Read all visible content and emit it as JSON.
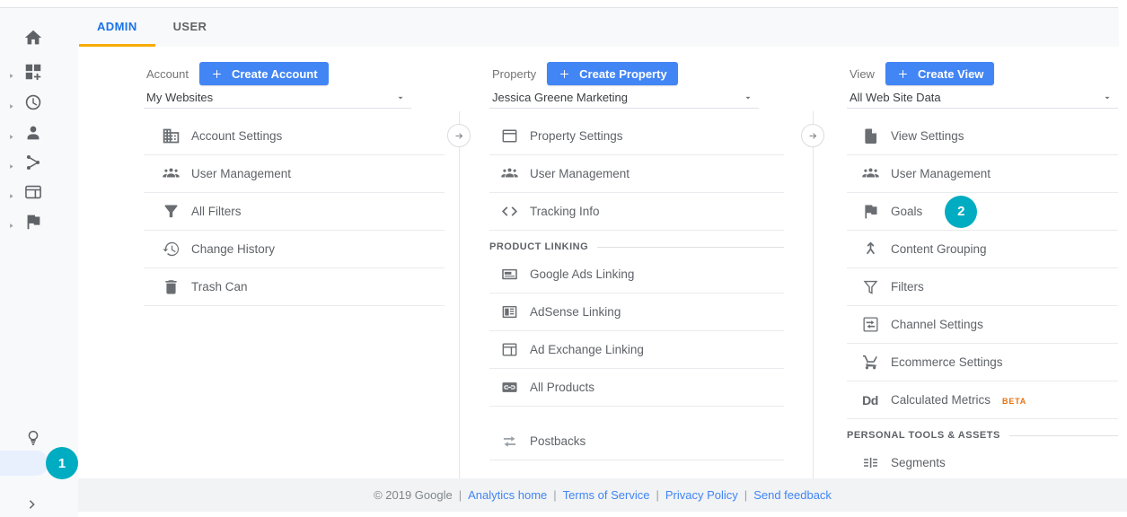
{
  "tabs": [
    {
      "label": "ADMIN",
      "active": true
    },
    {
      "label": "USER",
      "active": false
    }
  ],
  "sidebar": {
    "top_icons": [
      {
        "icon": "home-icon",
        "expandable": false
      },
      {
        "icon": "customization-icon",
        "expandable": true
      },
      {
        "icon": "clock-icon",
        "expandable": true
      },
      {
        "icon": "user-icon",
        "expandable": true
      },
      {
        "icon": "acquisition-icon",
        "expandable": true
      },
      {
        "icon": "behavior-card-icon",
        "expandable": true
      },
      {
        "icon": "flag-icon",
        "expandable": true
      }
    ],
    "bottom_icons": [
      {
        "icon": "lightbulb-icon"
      },
      {
        "icon": "gear-icon",
        "highlighted": true,
        "badge": "1"
      },
      {
        "icon": "collapse-chevron-icon"
      }
    ]
  },
  "columns": [
    {
      "entity_label": "Account",
      "create_label": "Create Account",
      "selected_value": "My Websites",
      "sections": [
        {
          "items": [
            {
              "icon": "building-icon",
              "label": "Account Settings"
            },
            {
              "icon": "user-group-icon",
              "label": "User Management"
            },
            {
              "icon": "filter-filled-icon",
              "label": "All Filters"
            },
            {
              "icon": "history-icon",
              "label": "Change History"
            },
            {
              "icon": "trash-icon",
              "label": "Trash Can"
            }
          ]
        }
      ]
    },
    {
      "entity_label": "Property",
      "create_label": "Create Property",
      "selected_value": "Jessica Greene Marketing",
      "sections": [
        {
          "items": [
            {
              "icon": "property-window-icon",
              "label": "Property Settings"
            },
            {
              "icon": "user-group-icon",
              "label": "User Management"
            },
            {
              "icon": "code-icon",
              "label": "Tracking Info"
            }
          ]
        },
        {
          "header": "PRODUCT LINKING",
          "items": [
            {
              "icon": "ads-card-icon",
              "label": "Google Ads Linking"
            },
            {
              "icon": "adsense-icon",
              "label": "AdSense Linking"
            },
            {
              "icon": "ad-exchange-icon",
              "label": "Ad Exchange Linking"
            },
            {
              "icon": "link-box-icon",
              "label": "All Products"
            }
          ]
        },
        {
          "gap": true,
          "items": [
            {
              "icon": "postbacks-icon",
              "label": "Postbacks",
              "muted": true
            }
          ]
        }
      ]
    },
    {
      "entity_label": "View",
      "create_label": "Create View",
      "selected_value": "All Web Site Data",
      "sections": [
        {
          "items": [
            {
              "icon": "file-icon",
              "label": "View Settings"
            },
            {
              "icon": "user-group-icon",
              "label": "User Management"
            },
            {
              "icon": "flag-icon",
              "label": "Goals",
              "badge": "2"
            },
            {
              "icon": "content-grouping-icon",
              "label": "Content Grouping"
            },
            {
              "icon": "filter-outline-icon",
              "label": "Filters"
            },
            {
              "icon": "channel-settings-icon",
              "label": "Channel Settings"
            },
            {
              "icon": "cart-icon",
              "label": "Ecommerce Settings"
            },
            {
              "icon": "dd-icon",
              "label": "Calculated Metrics",
              "suffix": "BETA"
            }
          ]
        },
        {
          "header": "PERSONAL TOOLS & ASSETS",
          "items": [
            {
              "icon": "segments-icon",
              "label": "Segments"
            }
          ]
        }
      ]
    }
  ],
  "footer": {
    "copyright": "© 2019 Google",
    "separator": "|",
    "links": [
      "Analytics home",
      "Terms of Service",
      "Privacy Policy",
      "Send feedback"
    ]
  },
  "colors": {
    "primary_blue": "#4285f4",
    "active_tab_blue": "#1a73e8",
    "tab_underline_orange": "#f9ab00",
    "annotation_teal": "#00acc1",
    "beta_orange": "#e8710a",
    "selected_item_bg": "#e8f0fe",
    "chrome_gray": "#f8f9fa",
    "footer_gray": "#f1f3f4"
  }
}
